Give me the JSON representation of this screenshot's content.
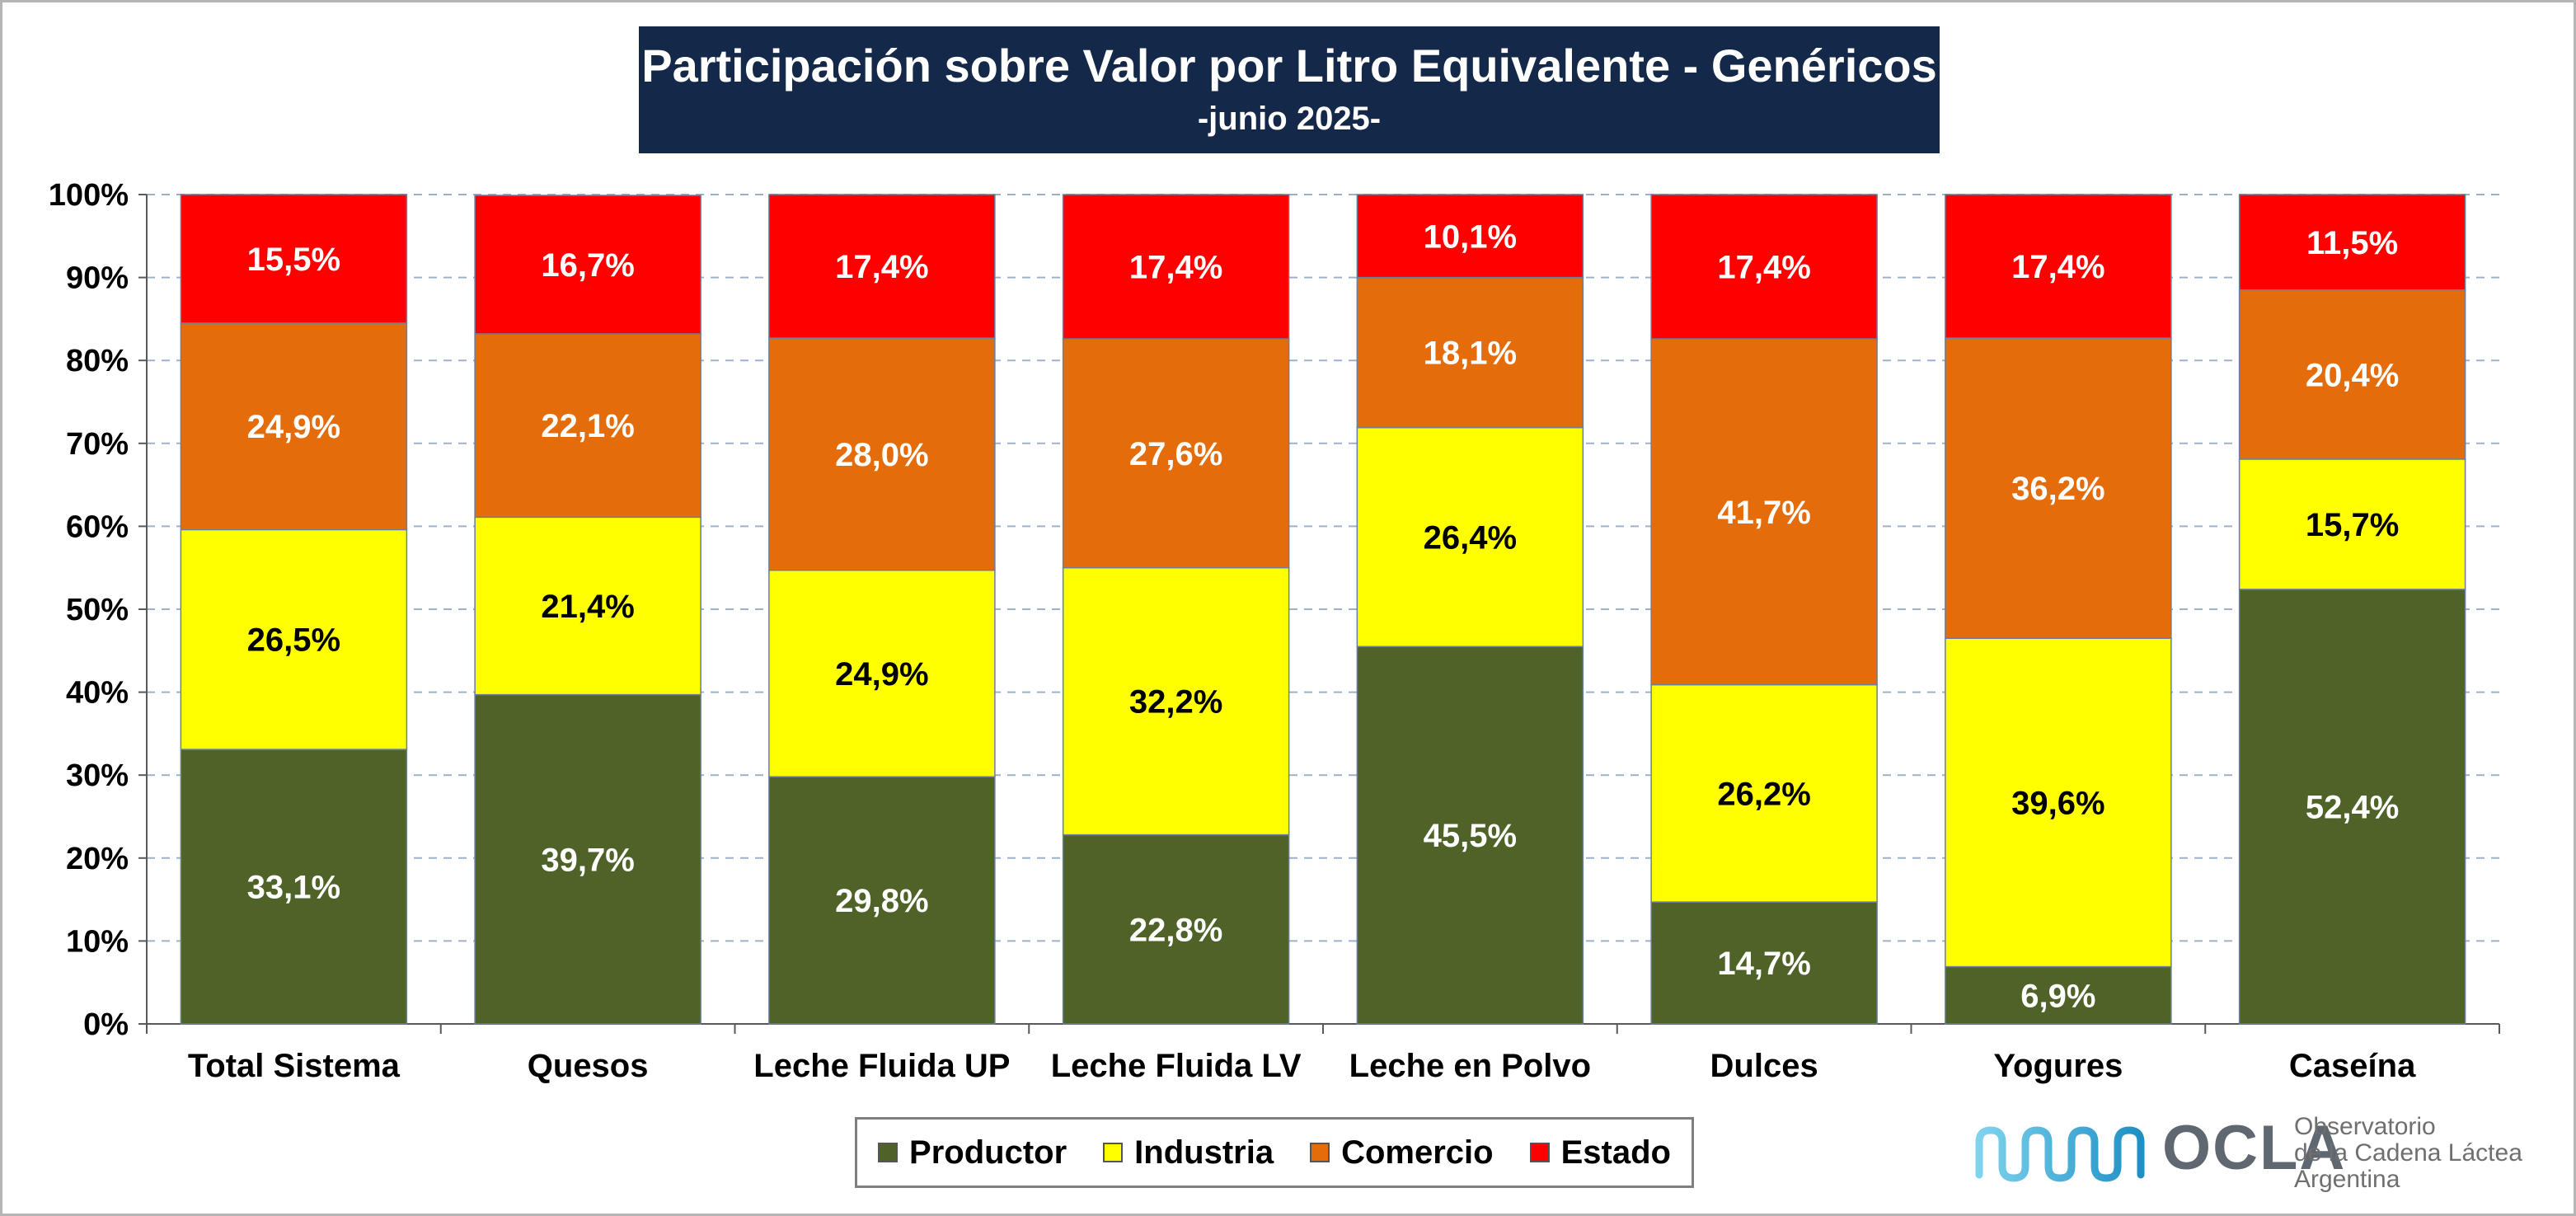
{
  "chart_data": {
    "type": "bar",
    "stacked": true,
    "title": "Participación sobre Valor por Litro Equivalente - Genéricos",
    "subtitle": "-junio 2025-",
    "categories": [
      "Total Sistema",
      "Quesos",
      "Leche Fluida UP",
      "Leche Fluida LV",
      "Leche en Polvo",
      "Dulces",
      "Yogures",
      "Caseína"
    ],
    "series": [
      {
        "name": "Productor",
        "color": "#4f6228",
        "label_color": "#ffffff",
        "values": [
          33.1,
          39.7,
          29.8,
          22.8,
          45.5,
          14.7,
          6.9,
          52.4
        ],
        "labels": [
          "33,1%",
          "39,7%",
          "29,8%",
          "22,8%",
          "45,5%",
          "14,7%",
          "6,9%",
          "52,4%"
        ]
      },
      {
        "name": "Industria",
        "color": "#ffff00",
        "label_color": "#000000",
        "values": [
          26.5,
          21.4,
          24.9,
          32.2,
          26.4,
          26.2,
          39.6,
          15.7
        ],
        "labels": [
          "26,5%",
          "21,4%",
          "24,9%",
          "32,2%",
          "26,4%",
          "26,2%",
          "39,6%",
          "15,7%"
        ]
      },
      {
        "name": "Comercio",
        "color": "#e46c0a",
        "label_color": "#ffffff",
        "values": [
          24.9,
          22.1,
          28.0,
          27.6,
          18.1,
          41.7,
          36.2,
          20.4
        ],
        "labels": [
          "24,9%",
          "22,1%",
          "28,0%",
          "27,6%",
          "18,1%",
          "41,7%",
          "36,2%",
          "20,4%"
        ]
      },
      {
        "name": "Estado",
        "color": "#ff0000",
        "label_color": "#ffffff",
        "values": [
          15.5,
          16.7,
          17.4,
          17.4,
          10.1,
          17.4,
          17.4,
          11.5
        ],
        "labels": [
          "15,5%",
          "16,7%",
          "17,4%",
          "17,4%",
          "10,1%",
          "17,4%",
          "17,4%",
          "11,5%"
        ]
      }
    ],
    "ylim": [
      0,
      100
    ],
    "yticks": [
      "0%",
      "10%",
      "20%",
      "30%",
      "40%",
      "50%",
      "60%",
      "70%",
      "80%",
      "90%",
      "100%"
    ],
    "grid": true,
    "legend_position": "bottom"
  },
  "logo": {
    "wordmark": "OCLA",
    "line1": "Observatorio",
    "line2": "de la Cadena Láctea",
    "line3": "Argentina"
  }
}
